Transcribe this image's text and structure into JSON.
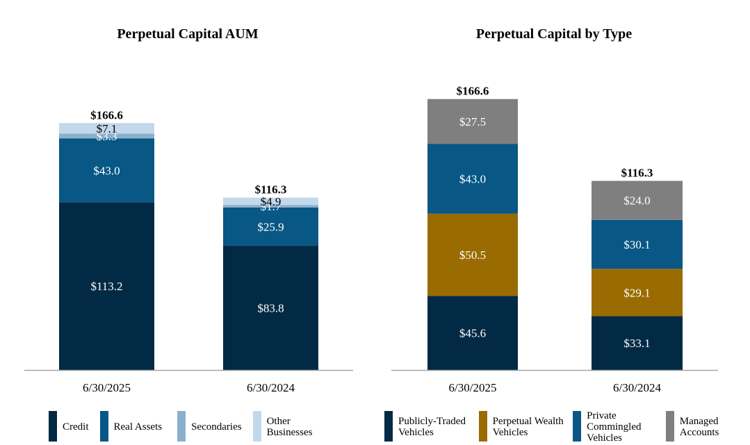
{
  "chart_data": [
    {
      "type": "bar",
      "stacked": true,
      "title": "Perpetual Capital AUM",
      "categories": [
        "6/30/2025",
        "6/30/2024"
      ],
      "totals": [
        "$166.6",
        "$116.3"
      ],
      "series": [
        {
          "name": "Credit",
          "color": "#032A44",
          "values": [
            113.2,
            83.8
          ],
          "labels": [
            "$113.2",
            "$83.8"
          ]
        },
        {
          "name": "Real Assets",
          "color": "#085784",
          "values": [
            43.0,
            25.9
          ],
          "labels": [
            "$43.0",
            "$25.9"
          ]
        },
        {
          "name": "Secondaries",
          "color": "#8BB0CE",
          "values": [
            3.3,
            1.7
          ],
          "labels": [
            "$3.3",
            "$1.7"
          ]
        },
        {
          "name": "Other Businesses",
          "color": "#C3D8EA",
          "values": [
            7.1,
            4.9
          ],
          "labels": [
            "$7.1",
            "$4.9"
          ]
        }
      ],
      "ylim": [
        0,
        185
      ],
      "legend_position": "bottom"
    },
    {
      "type": "bar",
      "stacked": true,
      "title": "Perpetual Capital by Type",
      "categories": [
        "6/30/2025",
        "6/30/2024"
      ],
      "totals": [
        "$166.6",
        "$116.3"
      ],
      "series": [
        {
          "name": "Publicly-Traded Vehicles",
          "color": "#032A44",
          "values": [
            45.6,
            33.1
          ],
          "labels": [
            "$45.6",
            "$33.1"
          ]
        },
        {
          "name": "Perpetual Wealth Vehicles",
          "color": "#9A6B00",
          "values": [
            50.5,
            29.1
          ],
          "labels": [
            "$50.5",
            "$29.1"
          ]
        },
        {
          "name": "Private Commingled Vehicles",
          "color": "#085784",
          "values": [
            43.0,
            30.1
          ],
          "labels": [
            "$43.0",
            "$30.1"
          ]
        },
        {
          "name": "Managed Accounts",
          "color": "#7F7F7F",
          "values": [
            27.5,
            24.0
          ],
          "labels": [
            "$27.5",
            "$24.0"
          ]
        }
      ],
      "ylim": [
        0,
        175
      ],
      "legend_position": "bottom"
    }
  ],
  "legends": [
    {
      "items": [
        {
          "name": "Credit",
          "color": "#032A44"
        },
        {
          "name": "Real Assets",
          "color": "#085784"
        },
        {
          "name": "Secondaries",
          "color": "#8BB0CE"
        },
        {
          "name": "Other Businesses",
          "color": "#C3D8EA"
        }
      ]
    },
    {
      "items": [
        {
          "name": "Publicly-Traded Vehicles",
          "color": "#032A44"
        },
        {
          "name": "Perpetual Wealth Vehicles",
          "color": "#9A6B00"
        },
        {
          "name": "Private Commingled Vehicles",
          "color": "#085784"
        },
        {
          "name": "Managed Accounts",
          "color": "#7F7F7F"
        }
      ]
    }
  ]
}
